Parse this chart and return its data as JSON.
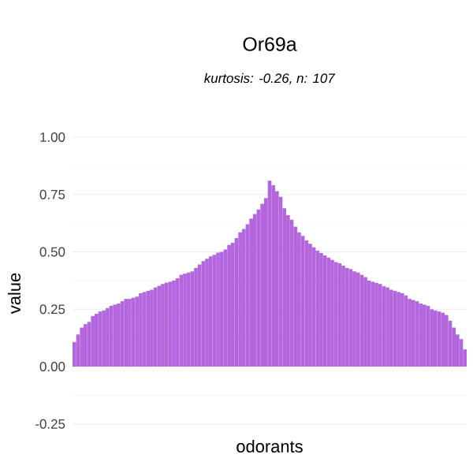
{
  "chart_data": {
    "type": "bar",
    "title": "Or69a",
    "subtitle": "*kurtosis: -0.26, n: 107*",
    "xlabel": "odorants",
    "ylabel": "value",
    "categories": [
      null,
      null,
      null,
      null,
      null,
      null,
      null,
      null,
      null,
      null,
      null,
      null,
      null,
      null,
      null,
      null,
      null,
      null,
      null,
      null,
      null,
      null,
      null,
      null,
      null,
      null,
      null,
      null,
      null,
      null,
      null,
      null,
      null,
      null,
      null,
      null,
      null,
      null,
      null,
      null,
      null,
      null,
      null,
      null,
      null,
      null,
      null,
      null,
      null,
      null,
      null,
      null,
      null,
      null,
      null,
      null,
      null,
      null,
      null,
      null,
      null,
      null,
      null,
      null,
      null,
      null,
      null,
      null,
      null,
      null,
      null,
      null,
      null,
      null,
      null,
      null,
      null,
      null,
      null,
      null,
      null,
      null,
      null,
      null,
      null,
      null,
      null,
      null,
      null,
      null,
      null,
      null,
      null,
      null,
      null,
      null,
      null,
      null,
      null,
      null,
      null,
      null,
      null,
      null,
      null,
      null,
      null
    ],
    "values": [
      0.107,
      0.14,
      0.17,
      0.185,
      0.195,
      0.22,
      0.23,
      0.24,
      0.245,
      0.255,
      0.265,
      0.27,
      0.275,
      0.285,
      0.295,
      0.295,
      0.3,
      0.305,
      0.32,
      0.325,
      0.33,
      0.335,
      0.345,
      0.352,
      0.36,
      0.366,
      0.37,
      0.375,
      0.385,
      0.4,
      0.405,
      0.41,
      0.415,
      0.43,
      0.445,
      0.46,
      0.47,
      0.48,
      0.487,
      0.497,
      0.5,
      0.51,
      0.53,
      0.54,
      0.56,
      0.585,
      0.6,
      0.62,
      0.645,
      0.665,
      0.685,
      0.71,
      0.735,
      0.81,
      0.79,
      0.765,
      0.74,
      0.69,
      0.66,
      0.64,
      0.61,
      0.585,
      0.57,
      0.55,
      0.535,
      0.52,
      0.505,
      0.495,
      0.485,
      0.475,
      0.465,
      0.455,
      0.45,
      0.44,
      0.43,
      0.425,
      0.415,
      0.41,
      0.4,
      0.39,
      0.375,
      0.37,
      0.365,
      0.36,
      0.35,
      0.345,
      0.335,
      0.33,
      0.325,
      0.32,
      0.31,
      0.295,
      0.29,
      0.285,
      0.275,
      0.27,
      0.265,
      0.25,
      0.245,
      0.24,
      0.235,
      0.225,
      0.2,
      0.17,
      0.14,
      0.12,
      0.075
    ],
    "color": "#b366dd",
    "ylim": [
      -0.25,
      1
    ],
    "yticks": [
      {
        "value": -0.25,
        "label": "-0.25"
      },
      {
        "value": 0,
        "label": "0.00"
      },
      {
        "value": 0.25,
        "label": "0.25"
      },
      {
        "value": 0.5,
        "label": "0.50"
      },
      {
        "value": 0.75,
        "label": "0.75"
      },
      {
        "value": 1,
        "label": "1.00"
      }
    ],
    "tick_labels": "y",
    "grid": "y"
  }
}
